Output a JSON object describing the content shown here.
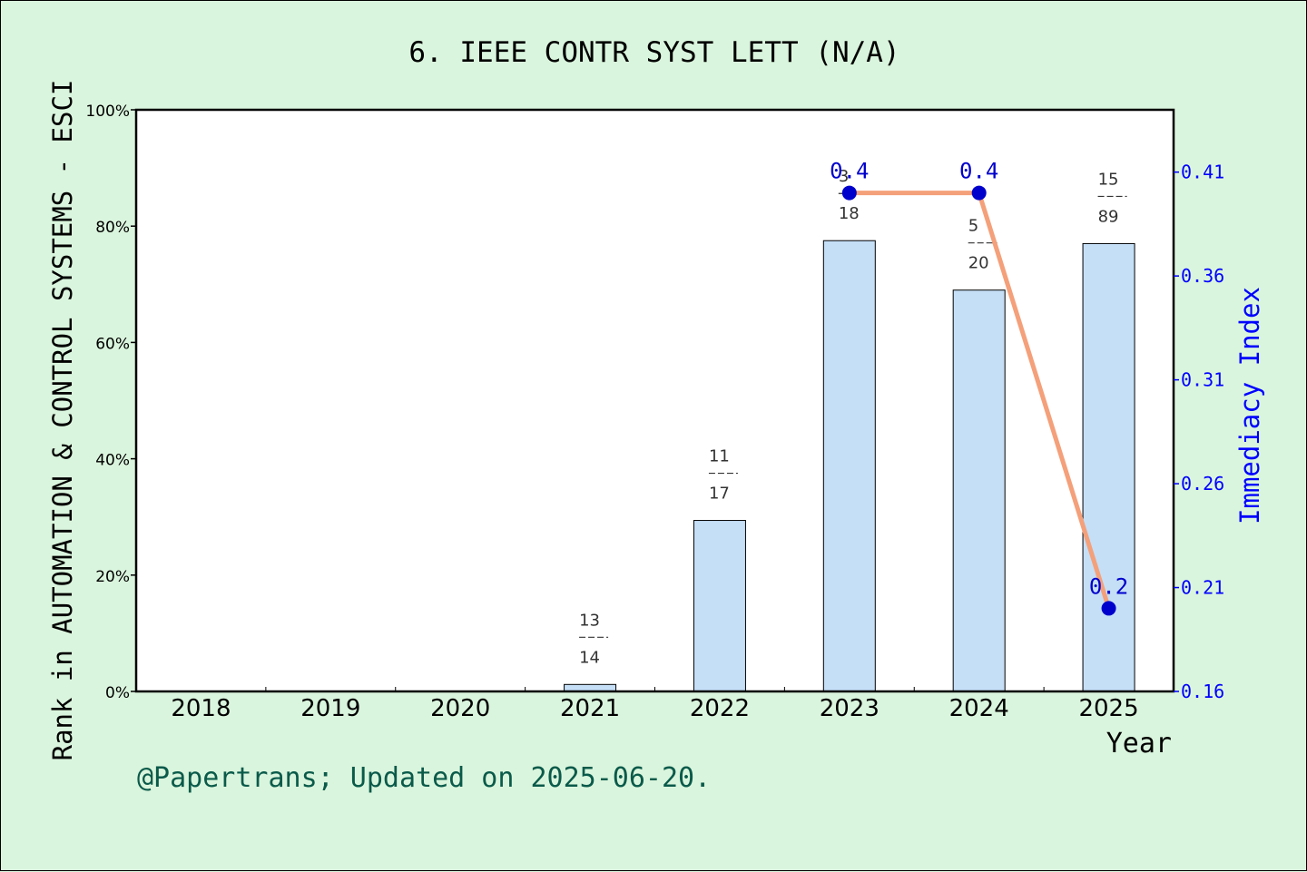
{
  "chart_data": {
    "type": "bar",
    "title": "6. IEEE CONTR SYST LETT (N/A)",
    "xlabel": "Year",
    "ylabel": "Rank in AUTOMATION & CONTROL SYSTEMS - ESCI",
    "y2label": "Immediacy Index",
    "categories": [
      "2018",
      "2019",
      "2020",
      "2021",
      "2022",
      "2023",
      "2024",
      "2025"
    ],
    "ylim": [
      0,
      100
    ],
    "yticks": [
      "0%",
      "20%",
      "40%",
      "60%",
      "80%",
      "100%"
    ],
    "y2lim": [
      0.16,
      0.44
    ],
    "y2ticks": [
      "0.16",
      "0.21",
      "0.26",
      "0.31",
      "0.36",
      "0.41"
    ],
    "bars": [
      {
        "year": "2021",
        "value": 1.2,
        "rank": "13",
        "total": "14"
      },
      {
        "year": "2022",
        "value": 29.4,
        "rank": "11",
        "total": "17"
      },
      {
        "year": "2023",
        "value": 77.5,
        "rank": "3",
        "total": "18"
      },
      {
        "year": "2024",
        "value": 69.0,
        "rank": "5",
        "total": "20"
      },
      {
        "year": "2025",
        "value": 77.0,
        "rank": "15",
        "total": "89"
      }
    ],
    "immediacy": [
      {
        "year": "2023",
        "value": 0.4,
        "label": "0.4"
      },
      {
        "year": "2024",
        "value": 0.4,
        "label": "0.4"
      },
      {
        "year": "2025",
        "value": 0.2,
        "label": "0.2"
      }
    ],
    "bar_color": "#c5dff7",
    "line_color": "#f4a07a",
    "point_color": "#0000cc",
    "right_axis_color": "#0000ff"
  },
  "footer": "@Papertrans; Updated on 2025-06-20."
}
